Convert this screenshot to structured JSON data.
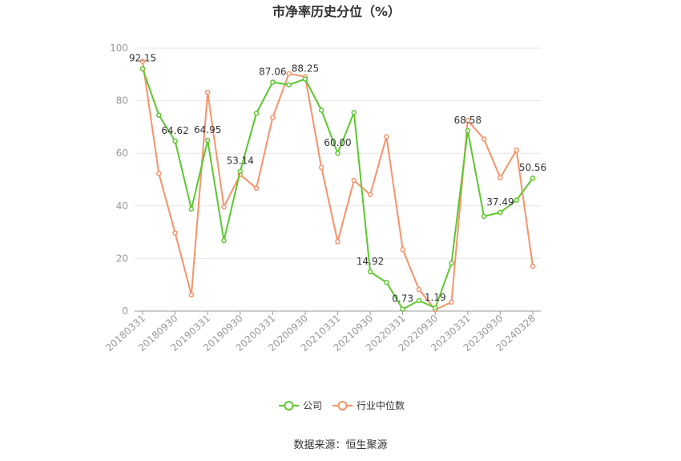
{
  "chart_data": {
    "type": "line",
    "title": "市净率历史分位（%）",
    "source": "数据来源：恒生聚源",
    "ylim": [
      0,
      100
    ],
    "yticks": [
      0,
      20,
      40,
      60,
      80,
      100
    ],
    "xtick_labels": [
      "20180331",
      "20180930",
      "20190331",
      "20190930",
      "20200331",
      "20200930",
      "20210331",
      "20210930",
      "20220331",
      "20220930",
      "20230331",
      "20230930",
      "20240328"
    ],
    "x": [
      "20180331",
      "20180630",
      "20180930",
      "20181231",
      "20190331",
      "20190630",
      "20190930",
      "20191231",
      "20200331",
      "20200630",
      "20200930",
      "20201231",
      "20210331",
      "20210630",
      "20210930",
      "20211231",
      "20220331",
      "20220630",
      "20220930",
      "20221231",
      "20230331",
      "20230630",
      "20230930",
      "20231231",
      "20240328"
    ],
    "grid": true,
    "legend_position": "bottom",
    "series": [
      {
        "name": "公司",
        "color": "#5cc72f",
        "values": [
          92.15,
          74.5,
          64.62,
          38.8,
          64.95,
          26.8,
          53.14,
          75.2,
          87.06,
          86.0,
          88.25,
          76.4,
          60.0,
          75.5,
          14.92,
          10.9,
          0.73,
          4.0,
          1.19,
          18.2,
          68.58,
          36.0,
          37.49,
          42.2,
          50.56
        ],
        "labels": {
          "0": "92.15",
          "2": "64.62",
          "4": "64.95",
          "6": "53.14",
          "8": "87.06",
          "10": "88.25",
          "12": "60.00",
          "14": "14.92",
          "16": "0.73",
          "18": "1.19",
          "20": "68.58",
          "22": "37.49",
          "24": "50.56"
        }
      },
      {
        "name": "行业中位数",
        "color": "#f5936a",
        "values": [
          95.0,
          52.3,
          29.7,
          6.2,
          83.2,
          39.6,
          51.9,
          46.7,
          73.6,
          90.3,
          89.1,
          54.6,
          26.4,
          49.7,
          44.3,
          66.3,
          23.4,
          8.2,
          0.5,
          3.4,
          72.5,
          65.4,
          50.7,
          61.2,
          17.0
        ]
      }
    ]
  }
}
